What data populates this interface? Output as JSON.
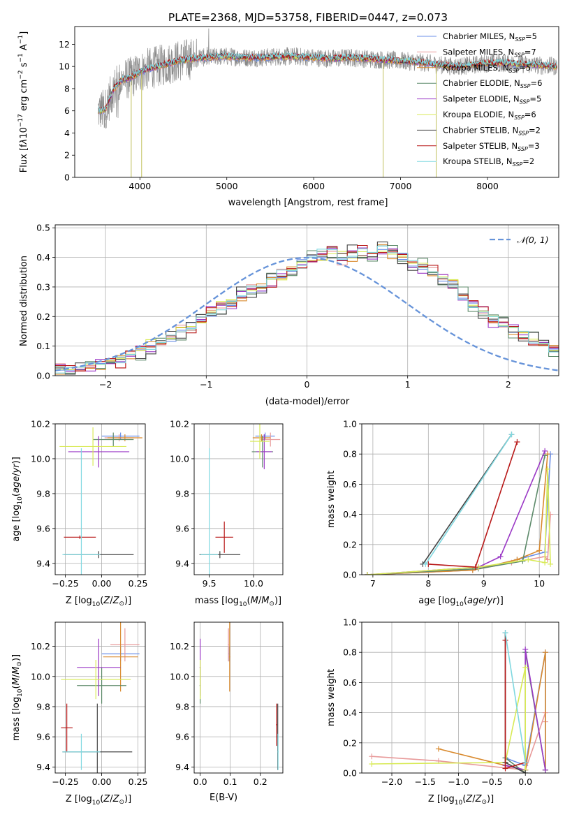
{
  "figure_title": "PLATE=2368, MJD=53758, FIBERID=0447, z=0.073",
  "colors": {
    "Chabrier MILES": "#6b8fe8",
    "Salpeter MILES": "#e89a9a",
    "Kroupa MILES": "#d98a2e",
    "Chabrier ELODIE": "#5d8a6a",
    "Salpeter ELODIE": "#9b39c6",
    "Kroupa ELODIE": "#d8ea55",
    "Chabrier STELIB": "#444444",
    "Salpeter STELIB": "#b81818",
    "Kroupa STELIB": "#7fd8e0",
    "data": "#8a8a8a",
    "normal": "#6693d9",
    "pink": "#e28fc3"
  },
  "chart_data": [
    {
      "id": "spectrum",
      "type": "line",
      "title": "PLATE=2368, MJD=53758, FIBERID=0447, z=0.073",
      "xlabel": "wavelength [Angstrom, rest frame]",
      "ylabel": "Flux [f_λ 10^-17 erg cm^-2 s^-1 A^-1]",
      "xlim": [
        3250,
        8820
      ],
      "ylim": [
        0,
        13.6
      ],
      "xticks": [
        4000,
        5000,
        6000,
        7000,
        8000
      ],
      "yticks": [
        0,
        2,
        4,
        6,
        8,
        10,
        12
      ],
      "legend_position": "right",
      "legend": [
        "Chabrier MILES, N_SSP=5",
        "Salpeter MILES, N_SSP=7",
        "Kroupa MILES, N_SSP=5",
        "Chabrier ELODIE, N_SSP=6",
        "Salpeter ELODIE, N_SSP=5",
        "Kroupa ELODIE, N_SSP=6",
        "Chabrier STELIB, N_SSP=2",
        "Salpeter STELIB, N_SSP=3",
        "Kroupa STELIB, N_SSP=2"
      ],
      "continuum": {
        "x": [
          3520,
          3600,
          3700,
          3800,
          3900,
          4000,
          4100,
          4200,
          4300,
          4400,
          4500,
          4600,
          4700,
          4800,
          4900,
          5000,
          5200,
          5400,
          5600,
          5800,
          6000,
          6200,
          6400,
          6600,
          6800,
          7000,
          7200,
          7400,
          7600,
          7800,
          8000,
          8200,
          8400,
          8600,
          8800
        ],
        "y": [
          6.0,
          6.1,
          8.0,
          8.8,
          9.0,
          9.5,
          9.8,
          10.0,
          10.2,
          10.4,
          10.6,
          10.7,
          10.8,
          10.8,
          10.9,
          10.9,
          10.8,
          10.8,
          10.9,
          10.9,
          10.8,
          10.7,
          10.8,
          10.7,
          10.6,
          10.5,
          10.4,
          10.2,
          10.0,
          10.1,
          10.3,
          10.3,
          10.2,
          10.1,
          10.0
        ]
      },
      "data_noise": 1.2
    },
    {
      "id": "residuals",
      "type": "bar",
      "xlabel": "(data-model)/error",
      "ylabel": "Normed distribution",
      "xlim": [
        -2.5,
        2.5
      ],
      "ylim": [
        0,
        0.51
      ],
      "xticks": [
        -2,
        -1,
        0,
        1,
        2
      ],
      "yticks": [
        0.0,
        0.1,
        0.2,
        0.3,
        0.4,
        0.5
      ],
      "bin_width": 0.1,
      "bin_start": -2.5,
      "reference_label": "𝒩(0, 1)",
      "series_values": [
        [
          0.02,
          0.02,
          0.03,
          0.03,
          0.04,
          0.05,
          0.05,
          0.07,
          0.08,
          0.1,
          0.11,
          0.13,
          0.15,
          0.17,
          0.19,
          0.21,
          0.24,
          0.25,
          0.27,
          0.29,
          0.3,
          0.32,
          0.34,
          0.36,
          0.38,
          0.4,
          0.41,
          0.42,
          0.4,
          0.41,
          0.42,
          0.41,
          0.43,
          0.42,
          0.4,
          0.38,
          0.37,
          0.35,
          0.33,
          0.31,
          0.27,
          0.24,
          0.22,
          0.19,
          0.17,
          0.15,
          0.14,
          0.12,
          0.11,
          0.09
        ]
      ],
      "series_offsets": [
        0.0,
        0.012,
        -0.01,
        0.02,
        -0.015,
        0.008,
        -0.02,
        0.015,
        0.004
      ],
      "normal_curve": {
        "mu": 0,
        "sigma": 1
      }
    },
    {
      "id": "age-vs-Z",
      "type": "scatter",
      "xlabel": "Z [log10(Z/Z⊙)]",
      "ylabel": "age [log10(age/yr)]",
      "xlim": [
        -0.32,
        0.3
      ],
      "ylim": [
        9.335,
        10.2
      ],
      "xticks": [
        -0.25,
        0.0,
        0.25
      ],
      "yticks": [
        9.4,
        9.6,
        9.8,
        10.0,
        10.2
      ],
      "points": [
        {
          "s": "Chabrier MILES",
          "x": 0.13,
          "y": 10.13,
          "xe": 0.13,
          "ye": 0.02
        },
        {
          "s": "Salpeter MILES",
          "x": 0.12,
          "y": 10.12,
          "xe": 0.1,
          "ye": 0.02
        },
        {
          "s": "Kroupa MILES",
          "x": 0.16,
          "y": 10.12,
          "xe": 0.12,
          "ye": 0.02
        },
        {
          "s": "Chabrier ELODIE",
          "x": 0.08,
          "y": 10.11,
          "xe": 0.14,
          "ye": 0.04
        },
        {
          "s": "Salpeter ELODIE",
          "x": -0.02,
          "y": 10.04,
          "xe": 0.21,
          "ye": 0.09
        },
        {
          "s": "Kroupa ELODIE",
          "x": -0.06,
          "y": 10.07,
          "xe": 0.23,
          "ye": 0.11
        },
        {
          "s": "Chabrier STELIB",
          "x": -0.02,
          "y": 9.45,
          "xe": 0.24,
          "ye": 0.02
        },
        {
          "s": "Salpeter STELIB",
          "x": -0.15,
          "y": 9.55,
          "xe": 0.11,
          "ye": 0.01
        },
        {
          "s": "Kroupa STELIB",
          "x": -0.14,
          "y": 9.45,
          "xe": 0.13,
          "ye": 0.61
        }
      ]
    },
    {
      "id": "age-vs-mass",
      "type": "scatter",
      "xlabel": "mass [log10(M/M⊙)]",
      "ylabel": "",
      "xlim": [
        9.33,
        10.33
      ],
      "ylim": [
        9.335,
        10.2
      ],
      "xticks": [
        9.5,
        10.0
      ],
      "yticks": [
        9.4,
        9.6,
        9.8,
        10.0,
        10.2
      ],
      "points": [
        {
          "s": "Chabrier MILES",
          "x": 10.13,
          "y": 10.13,
          "xe": 0.11,
          "ye": 0.02
        },
        {
          "s": "Salpeter MILES",
          "x": 10.19,
          "y": 10.11,
          "xe": 0.11,
          "ye": 0.04
        },
        {
          "s": "Kroupa MILES",
          "x": 10.09,
          "y": 10.12,
          "xe": 0.1,
          "ye": 0.02
        },
        {
          "s": "Chabrier ELODIE",
          "x": 10.1,
          "y": 10.04,
          "xe": 0.12,
          "ye": 0.09
        },
        {
          "s": "Salpeter ELODIE",
          "x": 10.12,
          "y": 10.04,
          "xe": 0.09,
          "ye": 0.1
        },
        {
          "s": "Kroupa ELODIE",
          "x": 10.07,
          "y": 10.1,
          "xe": 0.11,
          "ye": 0.1
        },
        {
          "s": "Chabrier STELIB",
          "x": 9.62,
          "y": 9.45,
          "xe": 0.23,
          "ye": 0.02
        },
        {
          "s": "Salpeter STELIB",
          "x": 9.67,
          "y": 9.55,
          "xe": 0.1,
          "ye": 0.09
        },
        {
          "s": "Kroupa STELIB",
          "x": 9.5,
          "y": 9.45,
          "xe": 0.1,
          "ye": 0.61
        }
      ]
    },
    {
      "id": "weight-vs-age",
      "type": "line",
      "xlabel": "age [log10(age/yr)]",
      "ylabel": "mass weight",
      "xlim": [
        6.8,
        10.35
      ],
      "ylim": [
        0,
        1.0
      ],
      "xticks": [
        7,
        8,
        9,
        10
      ],
      "yticks": [
        0.0,
        0.2,
        0.4,
        0.6,
        0.8,
        1.0
      ],
      "series": [
        {
          "s": "Chabrier MILES",
          "x": [
            6.9,
            8.8,
            9.6,
            10.1,
            10.2
          ],
          "y": [
            0.0,
            0.03,
            0.1,
            0.15,
            0.8
          ]
        },
        {
          "s": "Salpeter MILES",
          "x": [
            6.9,
            8.8,
            9.5,
            10.1,
            10.15,
            10.2
          ],
          "y": [
            0.0,
            0.03,
            0.08,
            0.12,
            0.1,
            0.4
          ]
        },
        {
          "s": "Kroupa MILES",
          "x": [
            6.9,
            8.8,
            9.6,
            10.0,
            10.15
          ],
          "y": [
            0.0,
            0.03,
            0.1,
            0.16,
            0.8
          ]
        },
        {
          "s": "Chabrier ELODIE",
          "x": [
            6.9,
            8.9,
            9.7,
            10.1
          ],
          "y": [
            0.0,
            0.04,
            0.09,
            0.79
          ]
        },
        {
          "s": "Salpeter ELODIE",
          "x": [
            6.9,
            8.9,
            9.3,
            10.1
          ],
          "y": [
            0.0,
            0.05,
            0.12,
            0.82
          ]
        },
        {
          "s": "Kroupa ELODIE",
          "x": [
            6.9,
            8.9,
            9.8,
            10.1,
            10.15,
            10.2
          ],
          "y": [
            0.0,
            0.05,
            0.1,
            0.08,
            0.7,
            0.07
          ]
        },
        {
          "s": "Chabrier STELIB",
          "x": [
            7.9,
            9.5
          ],
          "y": [
            0.07,
            0.93
          ]
        },
        {
          "s": "Salpeter STELIB",
          "x": [
            8.0,
            8.85,
            9.6
          ],
          "y": [
            0.07,
            0.05,
            0.88
          ]
        },
        {
          "s": "Kroupa STELIB",
          "x": [
            7.95,
            9.5
          ],
          "y": [
            0.07,
            0.93
          ]
        }
      ]
    },
    {
      "id": "mass-vs-Z",
      "type": "scatter",
      "xlabel": "Z [log10(Z/Z⊙)]",
      "ylabel": "mass [log10(M/M⊙)]",
      "xlim": [
        -0.32,
        0.3
      ],
      "ylim": [
        9.36,
        10.36
      ],
      "xticks": [
        -0.25,
        0.0,
        0.25
      ],
      "yticks": [
        9.4,
        9.6,
        9.8,
        10.0,
        10.2
      ],
      "points": [
        {
          "s": "Chabrier MILES",
          "x": 0.13,
          "y": 10.15,
          "xe": 0.13,
          "ye": 0.05
        },
        {
          "s": "Salpeter MILES",
          "x": 0.16,
          "y": 10.21,
          "xe": 0.1,
          "ye": 0.11
        },
        {
          "s": "Kroupa MILES",
          "x": 0.13,
          "y": 10.13,
          "xe": 0.12,
          "ye": 0.23
        },
        {
          "s": "Chabrier ELODIE",
          "x": 0.0,
          "y": 9.94,
          "xe": 0.17,
          "ye": 0.12
        },
        {
          "s": "Salpeter ELODIE",
          "x": -0.02,
          "y": 10.06,
          "xe": 0.15,
          "ye": 0.19
        },
        {
          "s": "Kroupa ELODIE",
          "x": -0.04,
          "y": 9.98,
          "xe": 0.24,
          "ye": 0.13
        },
        {
          "s": "Chabrier STELIB",
          "x": -0.03,
          "y": 9.5,
          "xe": 0.24,
          "ye": 0.32
        },
        {
          "s": "Salpeter STELIB",
          "x": -0.24,
          "y": 9.66,
          "xe": 0.04,
          "ye": 0.16
        },
        {
          "s": "Kroupa STELIB",
          "x": -0.14,
          "y": 9.5,
          "xe": 0.13,
          "ye": 0.12
        }
      ]
    },
    {
      "id": "mass-vs-ebv",
      "type": "scatter",
      "xlabel": "E(B-V)",
      "ylabel": "",
      "xlim": [
        -0.02,
        0.275
      ],
      "ylim": [
        9.36,
        10.36
      ],
      "xticks": [
        0.0,
        0.1,
        0.2
      ],
      "yticks": [
        9.4,
        9.6,
        9.8,
        10.0,
        10.2
      ],
      "points": [
        {
          "s": "Chabrier MILES",
          "x": 0.097,
          "y": 10.15,
          "xe": 0.002,
          "ye": 0.05
        },
        {
          "s": "Salpeter MILES",
          "x": 0.094,
          "y": 10.21,
          "xe": 0.002,
          "ye": 0.11
        },
        {
          "s": "Kroupa MILES",
          "x": 0.098,
          "y": 10.13,
          "xe": 0.002,
          "ye": 0.23
        },
        {
          "s": "Chabrier ELODIE",
          "x": 0.0,
          "y": 9.94,
          "xe": 0.002,
          "ye": 0.12
        },
        {
          "s": "Salpeter ELODIE",
          "x": 0.0,
          "y": 10.06,
          "xe": 0.002,
          "ye": 0.19
        },
        {
          "s": "Kroupa ELODIE",
          "x": 0.0,
          "y": 9.98,
          "xe": 0.002,
          "ye": 0.13
        },
        {
          "s": "Chabrier STELIB",
          "x": 0.258,
          "y": 9.6,
          "xe": 0.002,
          "ye": 0.22
        },
        {
          "s": "Salpeter STELIB",
          "x": 0.254,
          "y": 9.68,
          "xe": 0.002,
          "ye": 0.14
        },
        {
          "s": "Kroupa STELIB",
          "x": 0.259,
          "y": 9.5,
          "xe": 0.002,
          "ye": 0.12
        }
      ]
    },
    {
      "id": "weight-vs-Z",
      "type": "line",
      "xlabel": "Z [log10(Z/Z⊙)]",
      "ylabel": "mass weight",
      "xlim": [
        -2.45,
        0.5
      ],
      "ylim": [
        0,
        1.0
      ],
      "xticks": [
        -2.0,
        -1.5,
        -1.0,
        -0.5,
        0.0
      ],
      "yticks": [
        0.0,
        0.2,
        0.4,
        0.6,
        0.8,
        1.0
      ],
      "series": [
        {
          "s": "Chabrier MILES",
          "x": [
            -0.3,
            0.0,
            0.3,
            0.3
          ],
          "y": [
            0.1,
            0.05,
            0.8,
            0.02
          ]
        },
        {
          "s": "Salpeter MILES",
          "x": [
            -2.3,
            -1.3,
            0.0,
            0.3,
            0.3
          ],
          "y": [
            0.11,
            0.08,
            0.02,
            0.4,
            0.34
          ]
        },
        {
          "s": "Kroupa MILES",
          "x": [
            -1.3,
            -0.3,
            0.0,
            0.3,
            0.3
          ],
          "y": [
            0.16,
            0.05,
            0.02,
            0.8,
            0.02
          ]
        },
        {
          "s": "Chabrier ELODIE",
          "x": [
            -0.3,
            0.0,
            0.0,
            0.3
          ],
          "y": [
            0.1,
            0.0,
            0.8,
            0.02
          ]
        },
        {
          "s": "Salpeter ELODIE",
          "x": [
            -0.3,
            0.0,
            0.0,
            0.3
          ],
          "y": [
            0.05,
            0.02,
            0.82,
            0.02
          ]
        },
        {
          "s": "Kroupa ELODIE",
          "x": [
            -2.3,
            -0.3,
            0.0,
            0.0
          ],
          "y": [
            0.06,
            0.07,
            0.7,
            0.02
          ]
        },
        {
          "s": "Chabrier STELIB",
          "x": [
            -0.3,
            -0.3,
            0.0
          ],
          "y": [
            0.93,
            0.07,
            0.0
          ]
        },
        {
          "s": "Salpeter STELIB",
          "x": [
            -0.3,
            -0.3,
            0.0
          ],
          "y": [
            0.88,
            0.03,
            0.07
          ]
        },
        {
          "s": "Kroupa STELIB",
          "x": [
            -0.3,
            0.0
          ],
          "y": [
            0.93,
            0.07
          ]
        }
      ]
    }
  ]
}
